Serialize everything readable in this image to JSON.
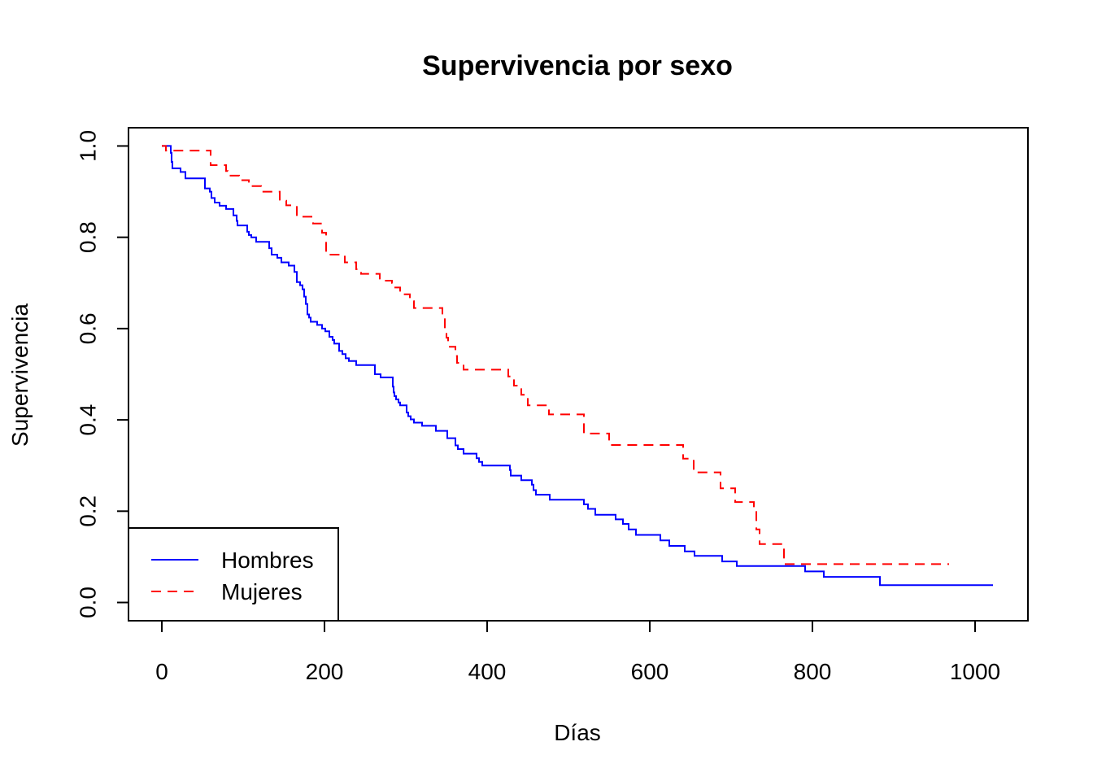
{
  "chart_data": {
    "type": "line",
    "title": "Supervivencia por sexo",
    "xlabel": "Días",
    "ylabel": "Supervivencia",
    "xlim": [
      -41,
      1065
    ],
    "ylim": [
      -0.04,
      1.04
    ],
    "xticks": [
      "0",
      "200",
      "400",
      "600",
      "800",
      "1000"
    ],
    "xtick_values": [
      0,
      200,
      400,
      600,
      800,
      1000
    ],
    "yticks": [
      "0.0",
      "0.2",
      "0.4",
      "0.6",
      "0.8",
      "1.0"
    ],
    "ytick_values": [
      0.0,
      0.2,
      0.4,
      0.6,
      0.8,
      1.0
    ],
    "grid": false,
    "legend_position": "bottom-left",
    "series": [
      {
        "name": "Hombres",
        "color": "#0000ff",
        "linestyle": "solid",
        "points": [
          [
            0,
            1.0
          ],
          [
            11,
            0.985
          ],
          [
            12,
            0.965
          ],
          [
            13,
            0.951
          ],
          [
            23,
            0.943
          ],
          [
            29,
            0.929
          ],
          [
            53,
            0.907
          ],
          [
            59,
            0.9
          ],
          [
            61,
            0.886
          ],
          [
            65,
            0.876
          ],
          [
            71,
            0.869
          ],
          [
            79,
            0.862
          ],
          [
            88,
            0.848
          ],
          [
            92,
            0.836
          ],
          [
            93,
            0.826
          ],
          [
            105,
            0.812
          ],
          [
            107,
            0.805
          ],
          [
            110,
            0.8
          ],
          [
            116,
            0.79
          ],
          [
            132,
            0.776
          ],
          [
            135,
            0.762
          ],
          [
            142,
            0.755
          ],
          [
            147,
            0.745
          ],
          [
            156,
            0.738
          ],
          [
            163,
            0.724
          ],
          [
            166,
            0.702
          ],
          [
            170,
            0.695
          ],
          [
            173,
            0.686
          ],
          [
            175,
            0.67
          ],
          [
            177,
            0.654
          ],
          [
            179,
            0.631
          ],
          [
            181,
            0.624
          ],
          [
            183,
            0.615
          ],
          [
            191,
            0.608
          ],
          [
            197,
            0.6
          ],
          [
            201,
            0.594
          ],
          [
            206,
            0.582
          ],
          [
            210,
            0.575
          ],
          [
            212,
            0.567
          ],
          [
            218,
            0.551
          ],
          [
            222,
            0.544
          ],
          [
            226,
            0.535
          ],
          [
            230,
            0.529
          ],
          [
            239,
            0.52
          ],
          [
            262,
            0.5
          ],
          [
            269,
            0.493
          ],
          [
            284,
            0.473
          ],
          [
            285,
            0.46
          ],
          [
            286,
            0.452
          ],
          [
            288,
            0.445
          ],
          [
            291,
            0.438
          ],
          [
            293,
            0.432
          ],
          [
            301,
            0.416
          ],
          [
            303,
            0.408
          ],
          [
            306,
            0.401
          ],
          [
            310,
            0.394
          ],
          [
            320,
            0.387
          ],
          [
            337,
            0.376
          ],
          [
            351,
            0.36
          ],
          [
            361,
            0.344
          ],
          [
            364,
            0.336
          ],
          [
            371,
            0.326
          ],
          [
            387,
            0.316
          ],
          [
            390,
            0.308
          ],
          [
            394,
            0.3
          ],
          [
            428,
            0.29
          ],
          [
            429,
            0.278
          ],
          [
            442,
            0.268
          ],
          [
            455,
            0.258
          ],
          [
            457,
            0.246
          ],
          [
            460,
            0.236
          ],
          [
            477,
            0.225
          ],
          [
            519,
            0.215
          ],
          [
            524,
            0.205
          ],
          [
            533,
            0.192
          ],
          [
            558,
            0.182
          ],
          [
            567,
            0.172
          ],
          [
            574,
            0.16
          ],
          [
            583,
            0.148
          ],
          [
            613,
            0.136
          ],
          [
            624,
            0.124
          ],
          [
            643,
            0.112
          ],
          [
            655,
            0.102
          ],
          [
            689,
            0.09
          ],
          [
            707,
            0.08
          ],
          [
            765,
            0.08
          ],
          [
            791,
            0.068
          ],
          [
            814,
            0.056
          ],
          [
            883,
            0.038
          ],
          [
            1022,
            0.038
          ]
        ]
      },
      {
        "name": "Mujeres",
        "color": "#ff0000",
        "linestyle": "dashed",
        "points": [
          [
            0,
            1.0
          ],
          [
            5,
            0.99
          ],
          [
            60,
            0.958
          ],
          [
            61,
            0.958
          ],
          [
            62,
            0.958
          ],
          [
            79,
            0.945
          ],
          [
            81,
            0.935
          ],
          [
            95,
            0.925
          ],
          [
            107,
            0.912
          ],
          [
            122,
            0.9
          ],
          [
            145,
            0.88
          ],
          [
            153,
            0.87
          ],
          [
            166,
            0.845
          ],
          [
            186,
            0.83
          ],
          [
            197,
            0.81
          ],
          [
            202,
            0.762
          ],
          [
            225,
            0.745
          ],
          [
            239,
            0.73
          ],
          [
            245,
            0.72
          ],
          [
            268,
            0.705
          ],
          [
            283,
            0.7
          ],
          [
            285,
            0.69
          ],
          [
            293,
            0.675
          ],
          [
            305,
            0.66
          ],
          [
            310,
            0.645
          ],
          [
            345,
            0.625
          ],
          [
            348,
            0.6
          ],
          [
            350,
            0.58
          ],
          [
            352,
            0.56
          ],
          [
            361,
            0.54
          ],
          [
            363,
            0.525
          ],
          [
            371,
            0.51
          ],
          [
            426,
            0.495
          ],
          [
            433,
            0.475
          ],
          [
            442,
            0.455
          ],
          [
            450,
            0.432
          ],
          [
            476,
            0.412
          ],
          [
            519,
            0.37
          ],
          [
            550,
            0.345
          ],
          [
            641,
            0.315
          ],
          [
            654,
            0.285
          ],
          [
            687,
            0.25
          ],
          [
            705,
            0.22
          ],
          [
            728,
            0.2
          ],
          [
            731,
            0.16
          ],
          [
            735,
            0.128
          ],
          [
            765,
            0.084
          ],
          [
            968,
            0.084
          ]
        ]
      }
    ]
  }
}
